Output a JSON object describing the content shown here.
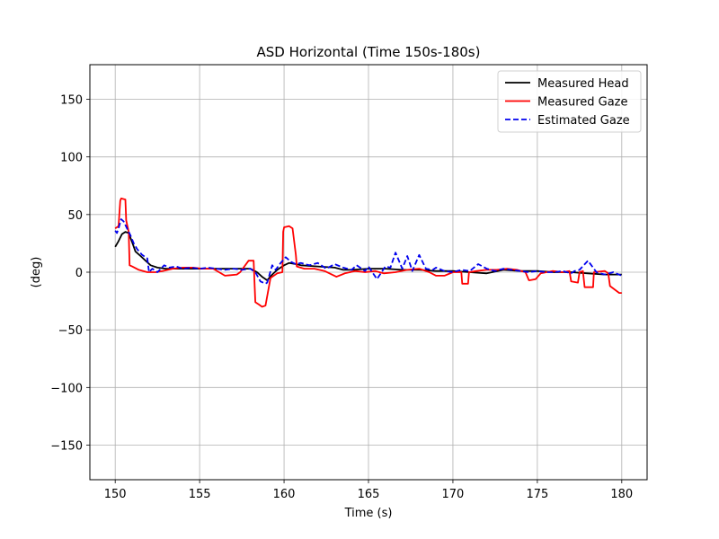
{
  "chart_data": {
    "type": "line",
    "title": "ASD Horizontal (Time 150s-180s)",
    "xlabel": "Time (s)",
    "ylabel": "(deg)",
    "xlim": [
      148.5,
      181.5
    ],
    "ylim": [
      -180,
      180
    ],
    "xticks": [
      150,
      155,
      160,
      165,
      170,
      175,
      180
    ],
    "yticks": [
      -150,
      -100,
      -50,
      0,
      50,
      100,
      150
    ],
    "xtick_labels": [
      "150",
      "155",
      "160",
      "165",
      "170",
      "175",
      "180"
    ],
    "ytick_labels": [
      "−150",
      "−100",
      "−50",
      "0",
      "50",
      "100",
      "150"
    ],
    "grid": true,
    "legend_position": "top-right",
    "series": [
      {
        "name": "Measured Head",
        "color": "#000000",
        "style": "solid",
        "x": [
          150.0,
          150.2,
          150.4,
          150.6,
          150.8,
          151.0,
          151.2,
          151.5,
          151.8,
          152.1,
          152.5,
          153.0,
          154.0,
          155.0,
          156.0,
          157.0,
          158.0,
          158.4,
          158.7,
          159.0,
          159.3,
          159.6,
          160.0,
          160.3,
          160.7,
          161.0,
          162.0,
          163.0,
          163.5,
          164.0,
          165.0,
          166.0,
          167.0,
          168.0,
          169.0,
          170.0,
          171.0,
          172.0,
          173.0,
          174.0,
          175.0,
          176.0,
          177.0,
          178.0,
          179.0,
          180.0
        ],
        "y": [
          22,
          27,
          33,
          35,
          34,
          26,
          18,
          14,
          10,
          6,
          4,
          3,
          3,
          3,
          3,
          3,
          3,
          0,
          -4,
          -7,
          -2,
          2,
          6,
          8,
          7,
          6,
          5,
          4,
          2,
          2,
          3,
          3,
          2,
          2,
          1,
          1,
          0,
          -1,
          2,
          1,
          1,
          0,
          0,
          -1,
          -2,
          -2
        ]
      },
      {
        "name": "Measured Gaze",
        "color": "#ff0000",
        "style": "solid",
        "x": [
          150.0,
          150.2,
          150.3,
          150.35,
          150.6,
          150.65,
          150.8,
          150.85,
          151.0,
          151.4,
          151.9,
          152.4,
          152.8,
          153.4,
          154.0,
          154.6,
          155.2,
          155.8,
          156.5,
          157.2,
          157.4,
          157.9,
          158.2,
          158.3,
          158.5,
          158.7,
          158.9,
          159.2,
          159.6,
          159.9,
          159.95,
          160.0,
          160.3,
          160.5,
          160.7,
          160.75,
          161.2,
          161.8,
          162.4,
          163.1,
          163.6,
          164.2,
          164.8,
          165.4,
          165.9,
          166.6,
          167.3,
          168.0,
          168.6,
          169.0,
          169.5,
          170.0,
          170.5,
          170.55,
          170.9,
          170.95,
          171.4,
          172.0,
          172.6,
          173.2,
          173.8,
          174.3,
          174.5,
          174.55,
          174.9,
          175.2,
          175.9,
          176.5,
          176.9,
          177.0,
          177.4,
          177.5,
          177.7,
          177.8,
          178.3,
          178.35,
          179.0,
          179.2,
          179.3,
          179.85,
          180.0
        ],
        "y": [
          38,
          40,
          62,
          64,
          63,
          45,
          35,
          6,
          5,
          2,
          0,
          0,
          1,
          3,
          4,
          4,
          3,
          3,
          -3,
          -2,
          0,
          10,
          10,
          -26,
          -28,
          -30,
          -29,
          -5,
          -1,
          0,
          35,
          39,
          40,
          38,
          15,
          5,
          3,
          3,
          1,
          -4,
          -1,
          1,
          0,
          1,
          -1,
          0,
          2,
          3,
          0,
          -3,
          -3,
          0,
          0,
          -10,
          -10,
          0,
          1,
          2,
          2,
          3,
          2,
          0,
          -7,
          -7,
          -6,
          -1,
          1,
          0,
          1,
          -8,
          -9,
          0,
          1,
          -13,
          -13,
          0,
          1,
          -1,
          -12,
          -18,
          -18
        ]
      },
      {
        "name": "Estimated Gaze",
        "color": "#0000ee",
        "style": "dashed",
        "x": [
          150.0,
          150.1,
          150.2,
          150.35,
          150.5,
          150.7,
          150.9,
          151.1,
          151.3,
          151.6,
          151.9,
          152.0,
          152.2,
          152.5,
          152.9,
          153.2,
          153.6,
          154.0,
          154.5,
          155.0,
          155.5,
          156.0,
          156.5,
          157.0,
          157.5,
          158.0,
          158.3,
          158.6,
          158.9,
          159.0,
          159.3,
          159.5,
          159.8,
          160.1,
          160.4,
          160.7,
          161.0,
          161.5,
          162.0,
          162.5,
          163.0,
          163.5,
          164.0,
          164.3,
          164.8,
          165.0,
          165.5,
          166.0,
          166.3,
          166.6,
          167.0,
          167.3,
          167.6,
          168.0,
          168.4,
          168.8,
          169.0,
          169.5,
          170.0,
          170.5,
          171.0,
          171.5,
          172.0,
          172.5,
          173.0,
          173.5,
          174.0,
          174.5,
          175.0,
          175.5,
          176.0,
          176.5,
          177.0,
          177.2,
          177.5,
          178.0,
          178.5,
          179.0,
          179.5,
          180.0
        ],
        "y": [
          36,
          34,
          38,
          46,
          44,
          38,
          32,
          25,
          20,
          15,
          12,
          0,
          3,
          0,
          6,
          4,
          5,
          3,
          4,
          3,
          4,
          3,
          2,
          3,
          2,
          3,
          0,
          -8,
          -10,
          -9,
          6,
          2,
          8,
          13,
          9,
          7,
          8,
          6,
          8,
          3,
          7,
          4,
          2,
          6,
          1,
          5,
          -6,
          5,
          4,
          17,
          3,
          14,
          1,
          15,
          3,
          2,
          4,
          1,
          0,
          2,
          1,
          7,
          3,
          1,
          3,
          2,
          1,
          0,
          1,
          0,
          0,
          1,
          -1,
          1,
          2,
          10,
          0,
          -2,
          0,
          -3
        ]
      }
    ]
  }
}
